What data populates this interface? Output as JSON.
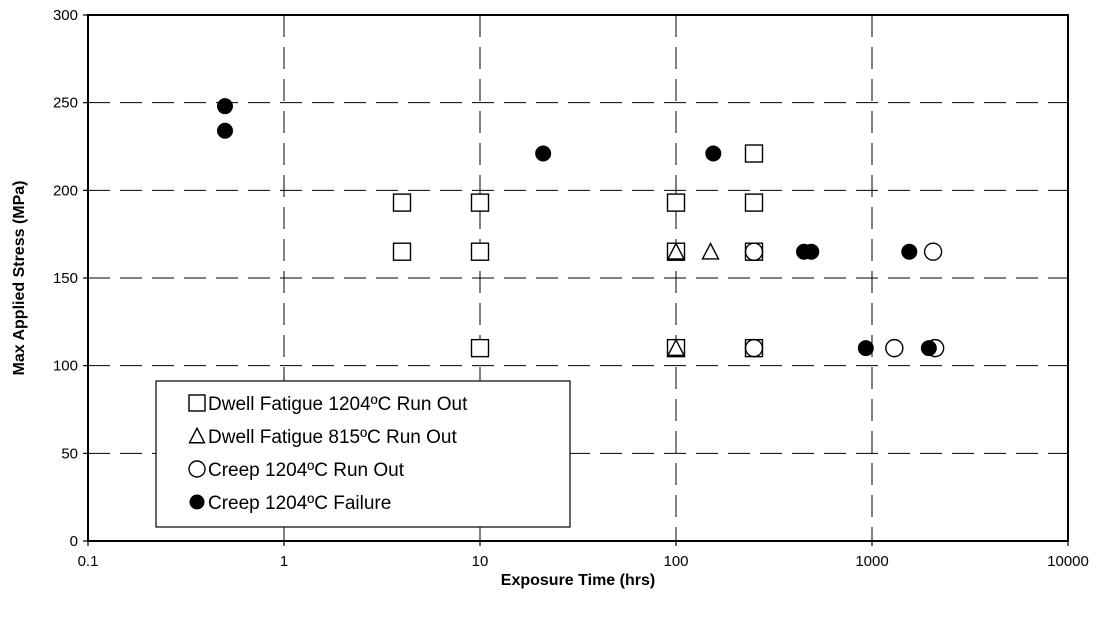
{
  "chart_data": {
    "type": "scatter",
    "xlabel": "Exposure Time (hrs)",
    "ylabel": "Max Applied Stress (MPa)",
    "xscale": "log",
    "xlim": [
      0.1,
      10000
    ],
    "ylim": [
      0,
      300
    ],
    "x_ticks": [
      "0.1",
      "1",
      "10",
      "100",
      "1000",
      "10000"
    ],
    "y_ticks": [
      "0",
      "50",
      "100",
      "150",
      "200",
      "250",
      "300"
    ],
    "grid": true,
    "legend_position": "bottom-left",
    "series": [
      {
        "name": "Dwell Fatigue 1204ºC Run Out",
        "marker": "open-square",
        "points": [
          [
            4,
            193
          ],
          [
            4,
            165
          ],
          [
            10,
            193
          ],
          [
            10,
            165
          ],
          [
            10,
            110
          ],
          [
            100,
            193
          ],
          [
            100,
            165
          ],
          [
            100,
            110
          ],
          [
            250,
            221
          ],
          [
            250,
            193
          ],
          [
            250,
            165
          ],
          [
            250,
            110
          ]
        ]
      },
      {
        "name": "Dwell Fatigue 815ºC Run Out",
        "marker": "open-triangle",
        "points": [
          [
            100,
            165
          ],
          [
            150,
            165
          ],
          [
            100,
            110
          ]
        ]
      },
      {
        "name": "Creep 1204ºC Run Out",
        "marker": "open-circle",
        "points": [
          [
            250,
            165
          ],
          [
            250,
            110
          ],
          [
            1300,
            110
          ],
          [
            2050,
            165
          ],
          [
            2100,
            110
          ]
        ]
      },
      {
        "name": "Creep 1204ºC Failure",
        "marker": "filled-circle",
        "points": [
          [
            0.5,
            248
          ],
          [
            0.5,
            234
          ],
          [
            21,
            221
          ],
          [
            155,
            221
          ],
          [
            450,
            165
          ],
          [
            490,
            165
          ],
          [
            1550,
            165
          ],
          [
            930,
            110
          ],
          [
            1950,
            110
          ]
        ]
      }
    ]
  }
}
